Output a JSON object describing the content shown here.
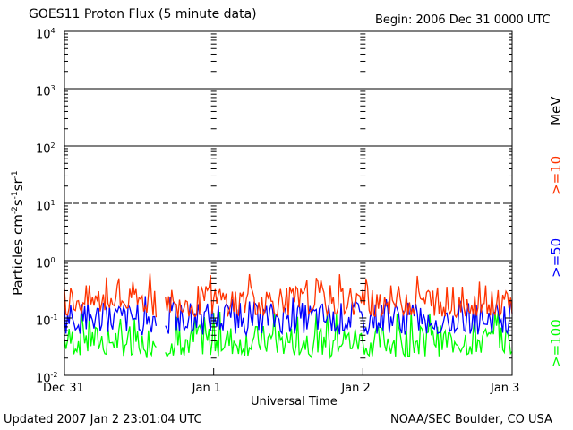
{
  "header": {
    "title": "GOES11 Proton Flux (5 minute data)",
    "begin": "Begin: 2006 Dec 31 0000 UTC"
  },
  "footer": {
    "updated": "Updated 2007 Jan  2 23:01:04 UTC",
    "credit": "NOAA/SEC Boulder, CO USA"
  },
  "axes": {
    "ylabel_main": "Particles cm",
    "ylabel_exp1": "-2",
    "ylabel_s": "s",
    "ylabel_exp2": "-1",
    "ylabel_sr": "sr",
    "ylabel_exp3": "-1"
  },
  "chart_data": {
    "type": "line",
    "title": "GOES11 Proton Flux (5 minute data)",
    "xlabel": "Universal Time",
    "ylabel": "Particles cm-2 s-1 sr-1",
    "yscale": "log",
    "ylim": [
      0.01,
      10000
    ],
    "xlim_hours": [
      0,
      72
    ],
    "x_ticks": [
      {
        "hour": 0,
        "label": "Dec 31"
      },
      {
        "hour": 24,
        "label": "Jan 1"
      },
      {
        "hour": 48,
        "label": "Jan 2"
      },
      {
        "hour": 72,
        "label": "Jan 3"
      }
    ],
    "y_ticks": [
      {
        "value": 0.01,
        "base": "10",
        "exp": "-2"
      },
      {
        "value": 0.1,
        "base": "10",
        "exp": "-1"
      },
      {
        "value": 1,
        "base": "10",
        "exp": "0"
      },
      {
        "value": 10,
        "base": "10",
        "exp": "1"
      },
      {
        "value": 100,
        "base": "10",
        "exp": "2"
      },
      {
        "value": 1000,
        "base": "10",
        "exp": "3"
      },
      {
        "value": 10000,
        "base": "10",
        "exp": "4"
      }
    ],
    "threshold_lines": [
      {
        "value": 1,
        "style": "solid"
      },
      {
        "value": 10,
        "style": "dashed"
      },
      {
        "value": 100,
        "style": "solid"
      },
      {
        "value": 1000,
        "style": "solid"
      }
    ],
    "data_gap_hours": [
      14.8,
      16.2
    ],
    "energy_unit": "MeV",
    "series": [
      {
        "name": ">=10",
        "color": "#ff3300",
        "typical": 0.2,
        "min": 0.1,
        "max": 0.6
      },
      {
        "name": ">=50",
        "color": "#0000ff",
        "typical": 0.1,
        "min": 0.05,
        "max": 0.25
      },
      {
        "name": ">=100",
        "color": "#00ff00",
        "typical": 0.04,
        "min": 0.02,
        "max": 0.13
      }
    ]
  }
}
